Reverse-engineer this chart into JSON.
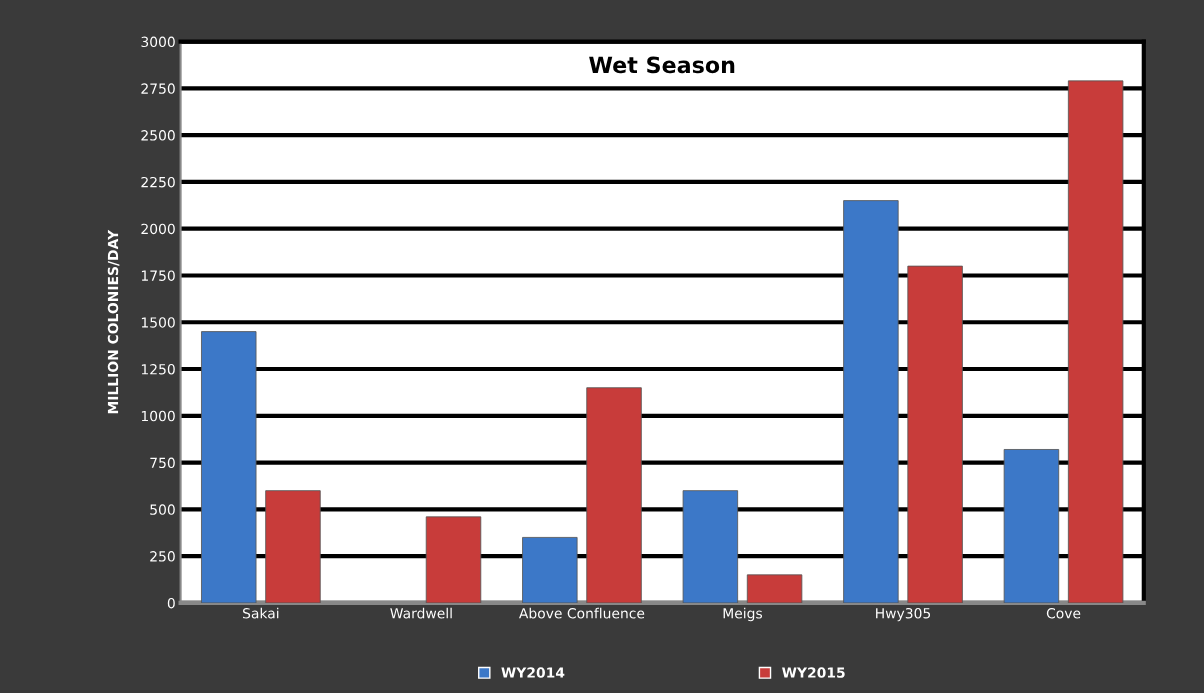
{
  "chart_data": {
    "type": "bar",
    "title": "Wet Season",
    "ylabel": "MILLION COLONIES/DAY",
    "categories": [
      "Sakai",
      "Wardwell",
      "Above Confluence",
      "Meigs",
      "Hwy305",
      "Cove"
    ],
    "series": [
      {
        "name": "WY2014",
        "color": "#3c78c8",
        "values": [
          1450,
          null,
          350,
          600,
          2150,
          820
        ]
      },
      {
        "name": "WY2015",
        "color": "#c83c3a",
        "values": [
          600,
          460,
          1150,
          150,
          1800,
          2790
        ]
      }
    ],
    "ylim": [
      0,
      3000
    ],
    "yticks": [
      0,
      250,
      500,
      750,
      1000,
      1250,
      1500,
      1750,
      2000,
      2250,
      2500,
      2750,
      3000
    ],
    "grid": "y",
    "legend": "bottom"
  }
}
